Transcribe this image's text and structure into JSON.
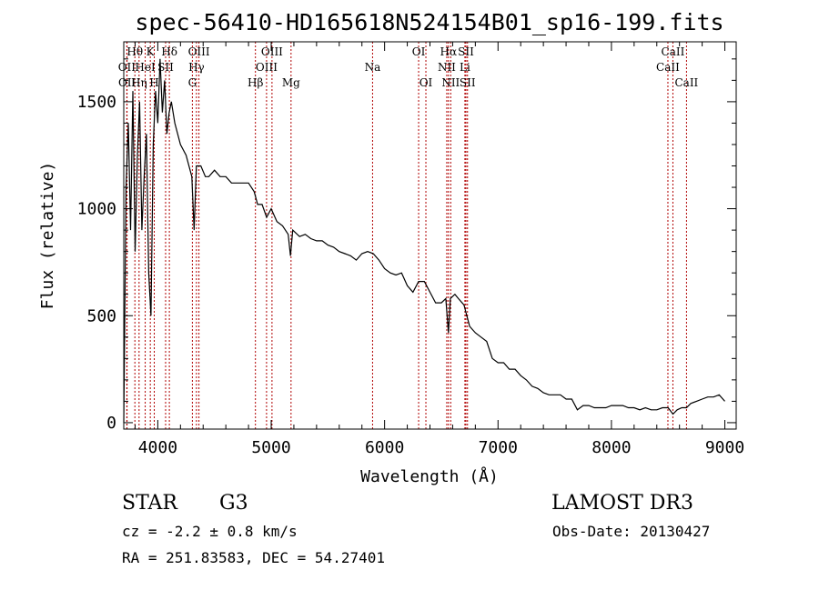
{
  "chart_data": {
    "type": "line",
    "title": "spec-56410-HD165618N524154B01_sp16-199.fits",
    "xlabel": "Wavelength (Å)",
    "ylabel": "Flux (relative)",
    "xlim": [
      3700,
      9100
    ],
    "ylim": [
      -30,
      1780
    ],
    "x_ticks": [
      4000,
      5000,
      6000,
      7000,
      8000,
      9000
    ],
    "x_tick_labels": [
      "4000",
      "5000",
      "6000",
      "7000",
      "8000",
      "9000"
    ],
    "y_ticks": [
      0,
      500,
      1000,
      1500
    ],
    "y_tick_labels": [
      "0",
      "500",
      "1000",
      "1500"
    ],
    "line_color": "#000000",
    "marker_color": "#b00000",
    "spectral_lines": [
      {
        "label": "Hθ",
        "x": 3798,
        "row": 0
      },
      {
        "label": "OII",
        "x": 3727,
        "row": 1
      },
      {
        "label": "OII",
        "x": 3729,
        "row": 2
      },
      {
        "label": "Hη",
        "x": 3835,
        "row": 2
      },
      {
        "label": "HeI",
        "x": 3889,
        "row": 1
      },
      {
        "label": "K",
        "x": 3934,
        "row": 0
      },
      {
        "label": "H",
        "x": 3969,
        "row": 2
      },
      {
        "label": "SII",
        "x": 4069,
        "row": 1
      },
      {
        "label": "Hδ",
        "x": 4102,
        "row": 0
      },
      {
        "label": "OIII",
        "x": 4363,
        "row": 0
      },
      {
        "label": "Hγ",
        "x": 4341,
        "row": 1
      },
      {
        "label": "G",
        "x": 4305,
        "row": 2
      },
      {
        "label": "Hβ",
        "x": 4861,
        "row": 2
      },
      {
        "label": "OIII",
        "x": 5007,
        "row": 0
      },
      {
        "label": "OIII",
        "x": 4959,
        "row": 1
      },
      {
        "label": "Mg",
        "x": 5175,
        "row": 2
      },
      {
        "label": "Na",
        "x": 5894,
        "row": 1
      },
      {
        "label": "OI",
        "x": 6300,
        "row": 0
      },
      {
        "label": "OI",
        "x": 6364,
        "row": 2
      },
      {
        "label": "Hα",
        "x": 6563,
        "row": 0
      },
      {
        "label": "NII",
        "x": 6548,
        "row": 1
      },
      {
        "label": "NII",
        "x": 6583,
        "row": 2
      },
      {
        "label": "SII",
        "x": 6717,
        "row": 0
      },
      {
        "label": "Li",
        "x": 6708,
        "row": 1
      },
      {
        "label": "SII",
        "x": 6731,
        "row": 2
      },
      {
        "label": "CaII",
        "x": 8542,
        "row": 0
      },
      {
        "label": "CaII",
        "x": 8498,
        "row": 1
      },
      {
        "label": "CaII",
        "x": 8662,
        "row": 2
      }
    ],
    "series": [
      {
        "x": [
          3700,
          3720,
          3740,
          3760,
          3780,
          3800,
          3820,
          3840,
          3860,
          3880,
          3900,
          3920,
          3940,
          3960,
          3980,
          4000,
          4020,
          4040,
          4060,
          4080,
          4100,
          4120,
          4150,
          4200,
          4250,
          4300,
          4320,
          4340,
          4380,
          4420,
          4450,
          4500,
          4550,
          4600,
          4650,
          4700,
          4750,
          4800,
          4850,
          4880,
          4920,
          4960,
          5000,
          5050,
          5100,
          5150,
          5170,
          5190,
          5250,
          5300,
          5350,
          5400,
          5450,
          5500,
          5550,
          5600,
          5650,
          5700,
          5750,
          5800,
          5850,
          5900,
          5950,
          6000,
          6050,
          6100,
          6150,
          6200,
          6250,
          6300,
          6350,
          6400,
          6450,
          6500,
          6540,
          6563,
          6580,
          6620,
          6650,
          6700,
          6750,
          6800,
          6850,
          6900,
          6950,
          7000,
          7050,
          7100,
          7150,
          7200,
          7250,
          7300,
          7350,
          7400,
          7450,
          7500,
          7550,
          7600,
          7650,
          7700,
          7750,
          7800,
          7850,
          7900,
          7950,
          8000,
          8050,
          8100,
          8150,
          8200,
          8250,
          8300,
          8350,
          8400,
          8450,
          8500,
          8542,
          8580,
          8620,
          8662,
          8700,
          8750,
          8800,
          8850,
          8900,
          8950,
          9000
        ],
        "y": [
          0,
          1100,
          1400,
          900,
          1550,
          800,
          1250,
          1500,
          900,
          1150,
          1350,
          700,
          500,
          1300,
          1550,
          1400,
          1700,
          1450,
          1600,
          1350,
          1450,
          1500,
          1400,
          1300,
          1250,
          1150,
          900,
          1200,
          1200,
          1150,
          1150,
          1180,
          1150,
          1150,
          1120,
          1120,
          1120,
          1120,
          1080,
          1020,
          1020,
          960,
          1000,
          940,
          920,
          880,
          780,
          900,
          870,
          880,
          860,
          850,
          850,
          830,
          820,
          800,
          790,
          780,
          760,
          790,
          800,
          790,
          760,
          720,
          700,
          690,
          700,
          640,
          610,
          660,
          660,
          610,
          560,
          560,
          580,
          420,
          580,
          600,
          580,
          550,
          450,
          420,
          400,
          380,
          300,
          280,
          280,
          250,
          250,
          220,
          200,
          170,
          160,
          140,
          130,
          130,
          130,
          110,
          110,
          60,
          80,
          80,
          70,
          70,
          70,
          80,
          80,
          80,
          70,
          70,
          60,
          70,
          60,
          60,
          70,
          70,
          40,
          60,
          70,
          70,
          90,
          100,
          110,
          120,
          120,
          130,
          100
        ]
      }
    ]
  },
  "info": {
    "object_type": "STAR",
    "subclass": "G3",
    "survey": "LAMOST DR3",
    "redshift": "cz = -2.2 ± 0.8 km/s",
    "obs_date": "Obs-Date: 20130427",
    "coords": "RA = 251.83583, DEC =  54.27401"
  }
}
